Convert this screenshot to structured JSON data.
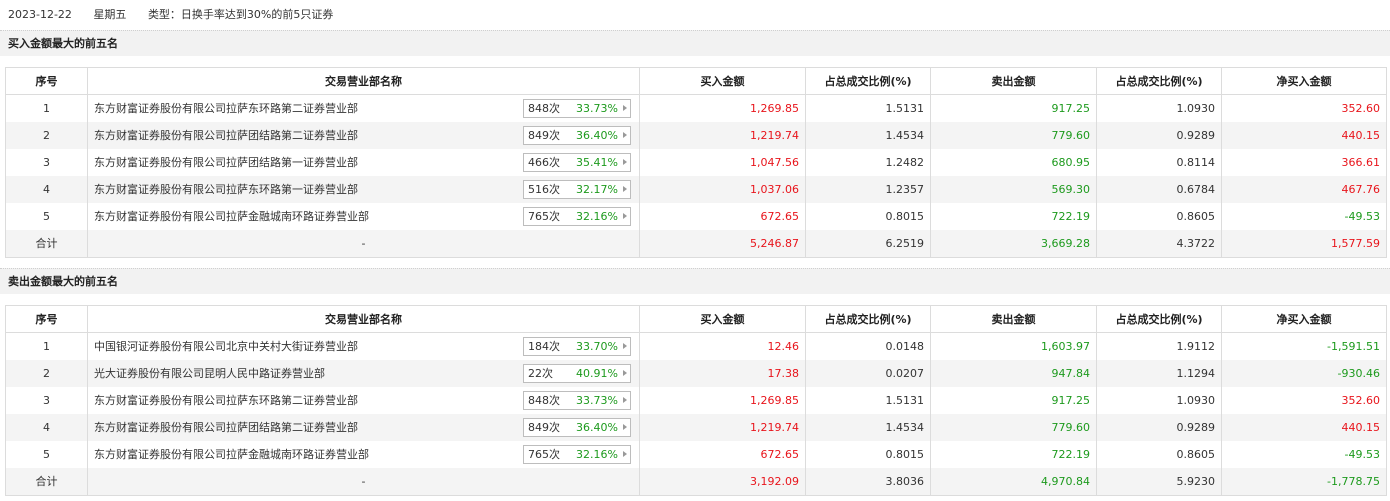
{
  "info": {
    "date": "2023-12-22",
    "weekday": "星期五",
    "type": "类型：日换手率达到30%的前5只证券"
  },
  "headers": [
    "序号",
    "交易营业部名称",
    "买入金额",
    "占总成交比例(%)",
    "卖出金额",
    "占总成交比例(%)",
    "净买入金额"
  ],
  "buy": {
    "title": "买入金额最大的前五名",
    "rows": [
      {
        "no": "1",
        "name": "东方财富证券股份有限公司拉萨东环路第二证券营业部",
        "count": "848次",
        "pct": "33.73%",
        "buy": "1,269.85",
        "buy_ratio": "1.5131",
        "sell": "917.25",
        "sell_ratio": "1.0930",
        "net": "352.60"
      },
      {
        "no": "2",
        "name": "东方财富证券股份有限公司拉萨团结路第二证券营业部",
        "count": "849次",
        "pct": "36.40%",
        "buy": "1,219.74",
        "buy_ratio": "1.4534",
        "sell": "779.60",
        "sell_ratio": "0.9289",
        "net": "440.15"
      },
      {
        "no": "3",
        "name": "东方财富证券股份有限公司拉萨团结路第一证券营业部",
        "count": "466次",
        "pct": "35.41%",
        "buy": "1,047.56",
        "buy_ratio": "1.2482",
        "sell": "680.95",
        "sell_ratio": "0.8114",
        "net": "366.61"
      },
      {
        "no": "4",
        "name": "东方财富证券股份有限公司拉萨东环路第一证券营业部",
        "count": "516次",
        "pct": "32.17%",
        "buy": "1,037.06",
        "buy_ratio": "1.2357",
        "sell": "569.30",
        "sell_ratio": "0.6784",
        "net": "467.76"
      },
      {
        "no": "5",
        "name": "东方财富证券股份有限公司拉萨金融城南环路证券营业部",
        "count": "765次",
        "pct": "32.16%",
        "buy": "672.65",
        "buy_ratio": "0.8015",
        "sell": "722.19",
        "sell_ratio": "0.8605",
        "net": "-49.53"
      }
    ],
    "total": {
      "label": "合计",
      "name": "-",
      "buy": "5,246.87",
      "buy_ratio": "6.2519",
      "sell": "3,669.28",
      "sell_ratio": "4.3722",
      "net": "1,577.59"
    }
  },
  "sell": {
    "title": "卖出金额最大的前五名",
    "rows": [
      {
        "no": "1",
        "name": "中国银河证券股份有限公司北京中关村大街证券营业部",
        "count": "184次",
        "pct": "33.70%",
        "buy": "12.46",
        "buy_ratio": "0.0148",
        "sell": "1,603.97",
        "sell_ratio": "1.9112",
        "net": "-1,591.51"
      },
      {
        "no": "2",
        "name": "光大证券股份有限公司昆明人民中路证券营业部",
        "count": "22次",
        "pct": "40.91%",
        "buy": "17.38",
        "buy_ratio": "0.0207",
        "sell": "947.84",
        "sell_ratio": "1.1294",
        "net": "-930.46"
      },
      {
        "no": "3",
        "name": "东方财富证券股份有限公司拉萨东环路第二证券营业部",
        "count": "848次",
        "pct": "33.73%",
        "buy": "1,269.85",
        "buy_ratio": "1.5131",
        "sell": "917.25",
        "sell_ratio": "1.0930",
        "net": "352.60"
      },
      {
        "no": "4",
        "name": "东方财富证券股份有限公司拉萨团结路第二证券营业部",
        "count": "849次",
        "pct": "36.40%",
        "buy": "1,219.74",
        "buy_ratio": "1.4534",
        "sell": "779.60",
        "sell_ratio": "0.9289",
        "net": "440.15"
      },
      {
        "no": "5",
        "name": "东方财富证券股份有限公司拉萨金融城南环路证券营业部",
        "count": "765次",
        "pct": "32.16%",
        "buy": "672.65",
        "buy_ratio": "0.8015",
        "sell": "722.19",
        "sell_ratio": "0.8605",
        "net": "-49.53"
      }
    ],
    "total": {
      "label": "合计",
      "name": "-",
      "buy": "3,192.09",
      "buy_ratio": "3.8036",
      "sell": "4,970.84",
      "sell_ratio": "5.9230",
      "net": "-1,778.75"
    }
  },
  "colors": {
    "positive": "#e8141b",
    "negative": "#1d9a1d"
  }
}
